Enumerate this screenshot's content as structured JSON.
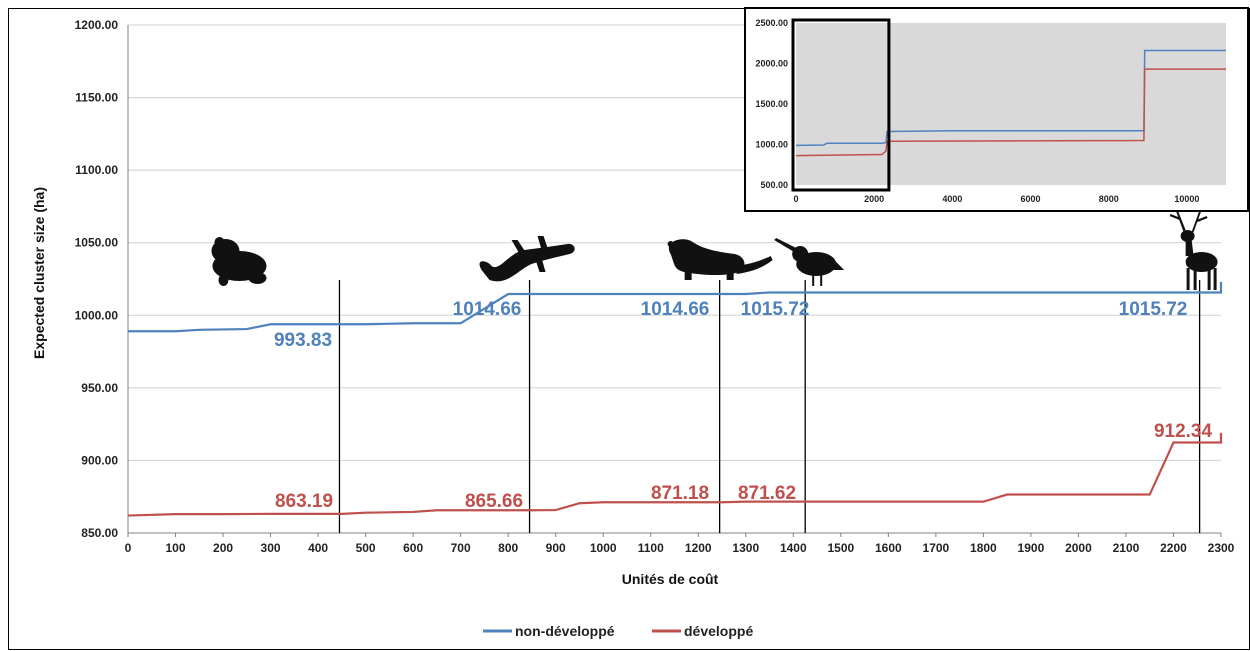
{
  "chart_data": [
    {
      "type": "line",
      "title": "",
      "xlabel": "Unités de coût",
      "ylabel": "Expected cluster size (ha)",
      "xlim": [
        0,
        2300
      ],
      "ylim": [
        850,
        1200
      ],
      "x_ticks": [
        "0",
        "100",
        "200",
        "300",
        "400",
        "500",
        "600",
        "700",
        "800",
        "900",
        "1000",
        "1100",
        "1200",
        "1300",
        "1400",
        "1500",
        "1600",
        "1700",
        "1800",
        "1900",
        "2000",
        "2100",
        "2200",
        "2300"
      ],
      "y_ticks": [
        "850.00",
        "900.00",
        "950.00",
        "1000.00",
        "1050.00",
        "1100.00",
        "1150.00",
        "1200.00"
      ],
      "grid": "horizontal",
      "legend_position": "bottom",
      "series": [
        {
          "name": "non-développé",
          "color": "#4f81bd",
          "x": [
            0,
            100,
            150,
            250,
            300,
            400,
            500,
            600,
            700,
            800,
            900,
            1000,
            1300,
            1350,
            1400,
            1500,
            1800,
            2000,
            2100,
            2200,
            2300,
            2300
          ],
          "y": [
            989,
            989,
            990,
            990.5,
            993.83,
            993.83,
            993.83,
            994.5,
            994.5,
            1014.66,
            1014.66,
            1014.66,
            1014.66,
            1015.72,
            1015.72,
            1015.72,
            1015.72,
            1015.72,
            1015.72,
            1015.72,
            1015.72,
            1023
          ]
        },
        {
          "name": "développé",
          "color": "#c0504d",
          "x": [
            0,
            100,
            200,
            300,
            400,
            450,
            500,
            600,
            650,
            700,
            800,
            850,
            900,
            950,
            1000,
            1100,
            1250,
            1300,
            1500,
            1800,
            1850,
            2000,
            2150,
            2200,
            2300,
            2300
          ],
          "y": [
            862,
            863,
            863,
            863.19,
            863.19,
            863.19,
            864,
            864.5,
            865.66,
            865.66,
            865.66,
            865.66,
            865.8,
            870.5,
            871.18,
            871.18,
            871.18,
            871.62,
            871.62,
            871.62,
            876.5,
            876.5,
            876.5,
            912.34,
            912.34,
            919
          ]
        }
      ],
      "annotations": [
        {
          "x": 445,
          "text": "993.83",
          "series": "non-développé"
        },
        {
          "x": 845,
          "text": "1014.66",
          "series": "non-développé"
        },
        {
          "x": 1245,
          "text": "1014.66",
          "series": "non-développé"
        },
        {
          "x": 1425,
          "text": "1015.72",
          "series": "non-développé"
        },
        {
          "x": 2255,
          "text": "1015.72",
          "series": "non-développé"
        },
        {
          "x": 445,
          "text": "863.19",
          "series": "développé"
        },
        {
          "x": 845,
          "text": "865.66",
          "series": "développé"
        },
        {
          "x": 1245,
          "text": "871.18",
          "series": "développé"
        },
        {
          "x": 1425,
          "text": "871.62",
          "series": "développé"
        },
        {
          "x": 2255,
          "text": "912.34",
          "series": "développé"
        }
      ],
      "markers": [
        {
          "x": 445,
          "icon": "toad-icon"
        },
        {
          "x": 845,
          "icon": "salamander-icon"
        },
        {
          "x": 1245,
          "icon": "marten-icon"
        },
        {
          "x": 1425,
          "icon": "woodcock-icon"
        },
        {
          "x": 2255,
          "icon": "deer-icon"
        }
      ]
    },
    {
      "type": "line",
      "title": "",
      "xlabel": "",
      "ylabel": "",
      "xlim": [
        0,
        11000
      ],
      "ylim": [
        500,
        2500
      ],
      "x_ticks": [
        "0",
        "2000",
        "4000",
        "6000",
        "8000",
        "10000"
      ],
      "y_ticks": [
        "500.00",
        "1000.00",
        "1500.00",
        "2000.00",
        "2500.00"
      ],
      "background": "#d9d9d9",
      "highlight_box": [
        0,
        2300
      ],
      "series": [
        {
          "name": "non-développé",
          "color": "#4f81bd",
          "x": [
            0,
            700,
            800,
            2200,
            2300,
            2330,
            4000,
            8900,
            8920,
            11000
          ],
          "y": [
            989,
            994,
            1015,
            1016,
            1023,
            1160,
            1170,
            1170,
            2160,
            2160
          ]
        },
        {
          "name": "développé",
          "color": "#c0504d",
          "x": [
            0,
            2200,
            2300,
            2330,
            8900,
            8920,
            11000
          ],
          "y": [
            862,
            876,
            919,
            1040,
            1050,
            1930,
            1930
          ]
        }
      ]
    }
  ]
}
